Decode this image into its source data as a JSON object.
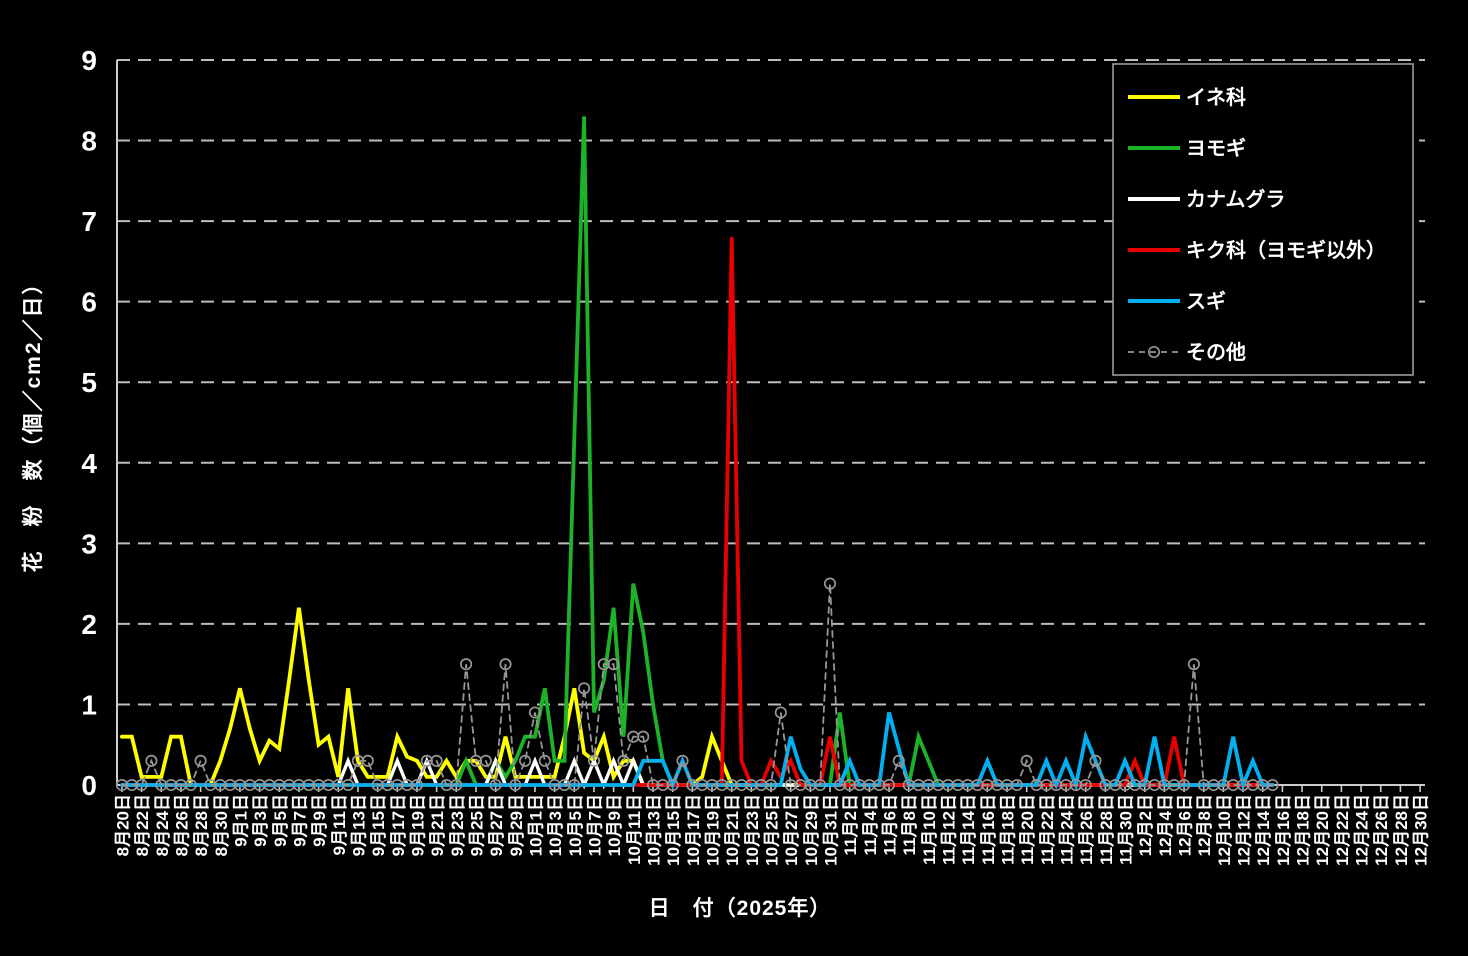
{
  "page": {
    "background": "#000000",
    "text_color": "#ffffff",
    "axis_color": "#cccccc",
    "grid_color": "#bdbdbd",
    "legend_border_color": "#a6a6a6"
  },
  "chart_data": {
    "type": "line",
    "title": "",
    "xlabel": "日　付（2025年）",
    "ylabel": "花　粉　数（個／cm2／日）",
    "ylim": [
      0,
      9
    ],
    "y_ticks": [
      "0",
      "1",
      "2",
      "3",
      "4",
      "5",
      "6",
      "7",
      "8",
      "9"
    ],
    "grid": "horizontal-dashed",
    "legend_position": "top-right",
    "x_axis": {
      "start_date": "8月20日",
      "end_date": "12月30日",
      "total_days": 133,
      "label_interval_days": 2,
      "tick_labels": [
        "8月20日",
        "8月22日",
        "8月24日",
        "8月26日",
        "8月28日",
        "8月30日",
        "9月1日",
        "9月3日",
        "9月5日",
        "9月7日",
        "9月9日",
        "9月11日",
        "9月13日",
        "9月15日",
        "9月17日",
        "9月19日",
        "9月21日",
        "9月23日",
        "9月25日",
        "9月27日",
        "9月29日",
        "10月1日",
        "10月3日",
        "10月5日",
        "10月7日",
        "10月9日",
        "10月11日",
        "10月13日",
        "10月15日",
        "10月17日",
        "10月19日",
        "10月21日",
        "10月23日",
        "10月25日",
        "10月27日",
        "10月29日",
        "10月31日",
        "11月2日",
        "11月4日",
        "11月6日",
        "11月8日",
        "11月10日",
        "11月12日",
        "11月14日",
        "11月16日",
        "11月18日",
        "11月20日",
        "11月22日",
        "11月24日",
        "11月26日",
        "11月28日",
        "11月30日",
        "12月2日",
        "12月4日",
        "12月6日",
        "12月8日",
        "12月10日",
        "12月12日",
        "12月14日",
        "12月16日",
        "12月18日",
        "12月20日",
        "12月22日",
        "12月24日",
        "12月26日",
        "12月28日",
        "12月30日"
      ]
    },
    "series": [
      {
        "name": "イネ科",
        "key": "grass",
        "color": "#FFFF00",
        "style": "solid",
        "values": [
          0.6,
          0.6,
          0.1,
          0.1,
          0.1,
          0.6,
          0.6,
          0,
          0,
          0,
          0.3,
          0.7,
          1.2,
          0.7,
          0.3,
          0.55,
          0.45,
          1.3,
          2.2,
          1.3,
          0.5,
          0.6,
          0.1,
          1.2,
          0.3,
          0.1,
          0.1,
          0.1,
          0.6,
          0.35,
          0.3,
          0.1,
          0.1,
          0.3,
          0.1,
          0.3,
          0.3,
          0.1,
          0.1,
          0.6,
          0.1,
          0.1,
          0.1,
          0.1,
          0.1,
          0.6,
          1.2,
          0.4,
          0.3,
          0.6,
          0.1,
          0.3,
          0.3,
          0,
          0,
          0,
          0,
          0,
          0,
          0.1,
          0.6,
          0.3,
          0,
          0,
          0,
          0,
          0,
          0,
          0,
          0,
          0,
          0,
          0,
          0,
          0,
          0,
          0,
          0,
          0,
          0,
          0,
          0,
          0,
          0,
          0,
          0,
          0,
          0,
          0,
          0,
          0,
          0,
          0,
          0,
          0,
          0,
          0,
          0,
          0,
          0,
          0,
          0,
          0,
          0,
          0,
          0,
          0,
          0,
          0,
          0,
          0,
          0,
          0,
          0,
          0,
          0,
          0,
          0
        ]
      },
      {
        "name": "ヨモギ",
        "key": "mugwort",
        "color": "#1CB329",
        "style": "solid",
        "values": [
          0,
          0,
          0,
          0,
          0,
          0,
          0,
          0,
          0,
          0,
          0,
          0,
          0,
          0,
          0,
          0,
          0,
          0,
          0,
          0,
          0,
          0,
          0,
          0,
          0,
          0,
          0,
          0,
          0,
          0,
          0,
          0,
          0,
          0,
          0,
          0.3,
          0,
          0,
          0.3,
          0.1,
          0.3,
          0.6,
          0.6,
          1.2,
          0.3,
          0.3,
          4.3,
          8.3,
          0.9,
          1.3,
          2.2,
          0.6,
          2.5,
          1.9,
          1.0,
          0.3,
          0,
          0,
          0,
          0,
          0,
          0,
          0,
          0,
          0,
          0,
          0,
          0,
          0,
          0,
          0,
          0,
          0,
          0.9,
          0,
          0,
          0,
          0,
          0,
          0,
          0,
          0.6,
          0.3,
          0,
          0,
          0,
          0,
          0,
          0,
          0,
          0,
          0,
          0,
          0,
          0,
          0,
          0,
          0,
          0,
          0,
          0,
          0,
          0,
          0,
          0,
          0,
          0,
          0,
          0,
          0,
          0,
          0,
          0,
          0,
          0,
          0,
          0,
          0
        ]
      },
      {
        "name": "カナムグラ",
        "key": "hops",
        "color": "#FFFFFF",
        "style": "solid",
        "values": [
          0,
          0,
          0,
          0,
          0,
          0,
          0,
          0,
          0,
          0,
          0,
          0,
          0,
          0,
          0,
          0,
          0,
          0,
          0,
          0,
          0,
          0,
          0,
          0.3,
          0,
          0,
          0,
          0,
          0.3,
          0,
          0,
          0.3,
          0,
          0,
          0,
          0,
          0,
          0,
          0.3,
          0,
          0,
          0,
          0.3,
          0,
          0,
          0,
          0.3,
          0,
          0.3,
          0,
          0.3,
          0,
          0.3,
          0,
          0,
          0,
          0,
          0,
          0,
          0,
          0,
          0,
          0,
          0,
          0,
          0,
          0,
          0,
          0,
          0,
          0,
          0,
          0,
          0,
          0,
          0,
          0,
          0,
          0,
          0,
          0,
          0,
          0,
          0,
          0,
          0,
          0,
          0,
          0,
          0,
          0,
          0,
          0,
          0,
          0,
          0,
          0,
          0,
          0,
          0,
          0,
          0,
          0,
          0,
          0,
          0,
          0,
          0,
          0,
          0,
          0,
          0,
          0,
          0,
          0,
          0,
          0,
          0
        ]
      },
      {
        "name": "キク科（ヨモギ以外）",
        "key": "aster",
        "color": "#E80000",
        "style": "solid",
        "values": [
          0,
          0,
          0,
          0,
          0,
          0,
          0,
          0,
          0,
          0,
          0,
          0,
          0,
          0,
          0,
          0,
          0,
          0,
          0,
          0,
          0,
          0,
          0,
          0,
          0,
          0,
          0,
          0,
          0,
          0,
          0,
          0,
          0,
          0,
          0,
          0,
          0,
          0,
          0,
          0,
          0,
          0,
          0,
          0,
          0,
          0,
          0,
          0,
          0,
          0,
          0,
          0,
          0,
          0,
          0,
          0,
          0,
          0,
          0,
          0,
          0,
          0,
          6.8,
          0.3,
          0,
          0,
          0.3,
          0.1,
          0.3,
          0,
          0,
          0,
          0.6,
          0,
          0,
          0,
          0,
          0,
          0,
          0,
          0,
          0,
          0,
          0,
          0,
          0,
          0,
          0,
          0,
          0,
          0,
          0,
          0,
          0,
          0,
          0,
          0,
          0,
          0,
          0,
          0,
          0,
          0,
          0.3,
          0,
          0,
          0,
          0.6,
          0,
          0,
          0,
          0,
          0,
          0,
          0,
          0,
          0,
          0
        ]
      },
      {
        "name": "スギ",
        "key": "cedar",
        "color": "#00B0F0",
        "style": "solid",
        "values": [
          0,
          0,
          0,
          0,
          0,
          0,
          0,
          0,
          0,
          0,
          0,
          0,
          0,
          0,
          0,
          0,
          0,
          0,
          0,
          0,
          0,
          0,
          0,
          0,
          0,
          0,
          0,
          0,
          0,
          0,
          0,
          0,
          0,
          0,
          0,
          0,
          0,
          0,
          0,
          0,
          0,
          0,
          0,
          0,
          0,
          0,
          0,
          0,
          0,
          0,
          0,
          0,
          0,
          0.3,
          0.3,
          0.3,
          0,
          0.3,
          0,
          0,
          0,
          0,
          0,
          0,
          0,
          0,
          0,
          0,
          0.6,
          0.2,
          0,
          0,
          0,
          0,
          0.3,
          0,
          0,
          0,
          0.9,
          0.45,
          0,
          0,
          0,
          0,
          0,
          0,
          0,
          0,
          0.3,
          0,
          0,
          0,
          0,
          0,
          0.3,
          0,
          0.3,
          0,
          0.6,
          0.3,
          0,
          0,
          0.3,
          0,
          0,
          0.6,
          0,
          0,
          0,
          0,
          0,
          0,
          0,
          0.6,
          0,
          0.3,
          0,
          0
        ]
      },
      {
        "name": "その他",
        "key": "other",
        "color": "#969696",
        "style": "dashed-circle",
        "values": [
          0,
          0,
          0,
          0.3,
          0,
          0,
          0,
          0,
          0.3,
          0,
          0,
          0,
          0,
          0,
          0,
          0,
          0,
          0,
          0,
          0,
          0,
          0,
          0,
          0,
          0.3,
          0.3,
          0,
          0,
          0,
          0,
          0,
          0.3,
          0.3,
          0,
          0,
          1.5,
          0.3,
          0.3,
          0,
          1.5,
          0,
          0.3,
          0.9,
          0.3,
          0,
          0,
          0,
          1.2,
          0.3,
          1.5,
          1.5,
          0.3,
          0.6,
          0.6,
          0,
          0,
          0,
          0.3,
          0,
          0,
          0,
          0,
          0,
          0,
          0,
          0,
          0,
          0.9,
          0,
          0,
          0,
          0,
          2.5,
          0,
          0,
          0,
          0,
          0,
          0,
          0.3,
          0,
          0,
          0,
          0,
          0,
          0,
          0,
          0,
          0,
          0,
          0,
          0,
          0.3,
          0,
          0,
          0,
          0,
          0,
          0,
          0.3,
          0,
          0,
          0,
          0,
          0,
          0,
          0,
          0,
          0,
          1.5,
          0,
          0,
          0,
          0,
          0,
          0,
          0,
          0
        ]
      }
    ]
  }
}
